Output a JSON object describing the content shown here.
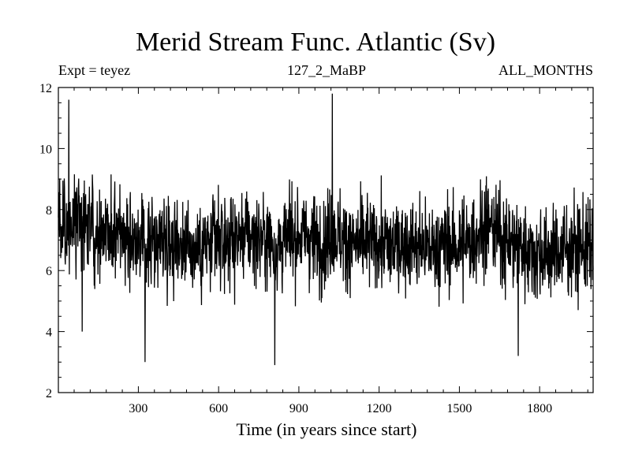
{
  "chart_data": {
    "type": "line",
    "title": "Merid Stream Func. Atlantic (Sv)",
    "subtitle_left": "Expt = teyez",
    "subtitle_center": "127_2_MaBP",
    "subtitle_right": "ALL_MONTHS",
    "xlabel": "Time (in years since start)",
    "ylabel": "",
    "xlim": [
      1,
      2000
    ],
    "ylim": [
      2,
      12
    ],
    "xticks": [
      300,
      600,
      900,
      1200,
      1500,
      1800
    ],
    "yticks": [
      2,
      4,
      6,
      8,
      10,
      12
    ],
    "grid": false,
    "series": [
      {
        "description": "Annual time series of Atlantic meridional stream function, years 1–2000; values fluctuate between ~2.9 and ~11.8 Sv around a mean of ~7 Sv",
        "mean": 7.0,
        "min": 2.9,
        "max": 11.8,
        "color": "#000000",
        "x_sample": [
          1,
          50,
          100,
          150,
          200,
          250,
          300,
          325,
          350,
          400,
          450,
          500,
          550,
          600,
          650,
          700,
          750,
          800,
          810,
          850,
          900,
          950,
          1000,
          1025,
          1050,
          1100,
          1150,
          1200,
          1250,
          1300,
          1350,
          1400,
          1450,
          1500,
          1550,
          1600,
          1650,
          1700,
          1750,
          1800,
          1850,
          1900,
          1950,
          2000
        ],
        "y_sample": [
          7.2,
          7.4,
          7.6,
          7.3,
          7.5,
          7.2,
          7.0,
          6.8,
          6.9,
          7.1,
          7.0,
          6.7,
          6.8,
          6.9,
          7.0,
          7.2,
          7.1,
          6.9,
          6.7,
          7.0,
          7.2,
          7.0,
          6.9,
          7.3,
          7.1,
          6.8,
          6.9,
          6.9,
          6.8,
          6.9,
          6.8,
          6.7,
          6.9,
          6.8,
          7.0,
          7.6,
          7.1,
          6.9,
          6.7,
          6.5,
          6.6,
          6.7,
          6.8,
          6.7
        ],
        "x_extremes": [
          40,
          90,
          325,
          810,
          1025,
          1720
        ],
        "y_extremes": [
          11.6,
          4.0,
          3.0,
          2.9,
          11.8,
          3.2
        ]
      }
    ]
  }
}
